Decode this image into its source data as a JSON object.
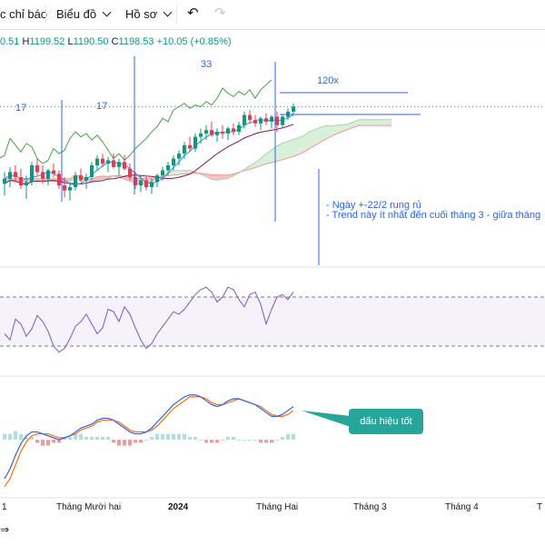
{
  "toolbar": {
    "indicators_label": "c chỉ báo",
    "chart_label": "Biểu đồ",
    "profile_label": "Hồ sơ",
    "undo_icon": "undo-icon",
    "redo_icon": "redo-icon"
  },
  "ohlc": {
    "o_fragment": "0.51",
    "h_label": "H",
    "h_value": "1199.52",
    "l_label": "L",
    "l_value": "1190.50",
    "c_label": "C",
    "c_value": "1198.53",
    "change": "+10.05 (+0.85%)"
  },
  "annotations": {
    "count_a": "17",
    "count_b": "17",
    "count_c": "33",
    "ratio": "120x",
    "note_line1": "- Ngày +-22/2 rung rủ",
    "note_line2": "- Trend này ít nhất đến cuối tháng 3 - giữa tháng",
    "callout": "dấu hiệu tốt"
  },
  "chart_data": {
    "type": "candlestick",
    "x_ticks": [
      "1",
      "Tháng Mười hai",
      "2024",
      "Tháng Hai",
      "Tháng 3",
      "Tháng 4",
      "T"
    ],
    "candles": [
      [
        5,
        12,
        -2,
        8
      ],
      [
        8,
        15,
        3,
        12
      ],
      [
        12,
        16,
        6,
        9
      ],
      [
        9,
        14,
        2,
        4
      ],
      [
        4,
        10,
        -4,
        6
      ],
      [
        6,
        18,
        4,
        16
      ],
      [
        16,
        20,
        10,
        12
      ],
      [
        12,
        16,
        5,
        8
      ],
      [
        8,
        14,
        4,
        13
      ],
      [
        13,
        17,
        9,
        11
      ],
      [
        11,
        13,
        2,
        4
      ],
      [
        4,
        9,
        -3,
        1
      ],
      [
        1,
        6,
        -5,
        3
      ],
      [
        3,
        12,
        1,
        10
      ],
      [
        10,
        14,
        6,
        7
      ],
      [
        7,
        11,
        2,
        9
      ],
      [
        9,
        18,
        7,
        16
      ],
      [
        16,
        22,
        13,
        20
      ],
      [
        20,
        23,
        15,
        17
      ],
      [
        17,
        21,
        12,
        19
      ],
      [
        19,
        23,
        14,
        15
      ],
      [
        15,
        20,
        10,
        18
      ],
      [
        18,
        22,
        13,
        14
      ],
      [
        14,
        17,
        7,
        9
      ],
      [
        9,
        12,
        2,
        4
      ],
      [
        4,
        10,
        0,
        7
      ],
      [
        7,
        9,
        1,
        3
      ],
      [
        3,
        8,
        -1,
        6
      ],
      [
        6,
        11,
        3,
        10
      ],
      [
        10,
        15,
        7,
        13
      ],
      [
        13,
        18,
        10,
        16
      ],
      [
        16,
        22,
        13,
        20
      ],
      [
        20,
        25,
        16,
        23
      ],
      [
        23,
        30,
        20,
        28
      ],
      [
        28,
        33,
        24,
        26
      ],
      [
        26,
        35,
        24,
        33
      ],
      [
        33,
        38,
        29,
        35
      ],
      [
        35,
        40,
        31,
        37
      ],
      [
        37,
        42,
        33,
        34
      ],
      [
        34,
        38,
        30,
        36
      ],
      [
        36,
        40,
        32,
        35
      ],
      [
        35,
        39,
        31,
        38
      ],
      [
        38,
        41,
        34,
        36
      ],
      [
        36,
        42,
        34,
        40
      ],
      [
        40,
        48,
        38,
        46
      ],
      [
        46,
        49,
        41,
        43
      ],
      [
        43,
        46,
        39,
        41
      ],
      [
        41,
        45,
        37,
        44
      ],
      [
        44,
        47,
        40,
        42
      ],
      [
        42,
        46,
        38,
        45
      ],
      [
        45,
        48,
        36,
        40
      ],
      [
        40,
        46,
        38,
        45
      ],
      [
        45,
        50,
        43,
        48
      ],
      [
        48,
        53,
        46,
        51
      ]
    ],
    "y_range": [
      -10,
      55
    ],
    "rsi": {
      "values": [
        40,
        35,
        52,
        48,
        38,
        44,
        55,
        50,
        42,
        30,
        25,
        28,
        36,
        46,
        50,
        56,
        48,
        40,
        45,
        60,
        58,
        50,
        62,
        56,
        45,
        35,
        28,
        32,
        40,
        46,
        52,
        58,
        56,
        60,
        66,
        72,
        76,
        78,
        74,
        66,
        70,
        78,
        76,
        68,
        62,
        72,
        74,
        64,
        48,
        60,
        70,
        72,
        68,
        74
      ],
      "levels": [
        70,
        30
      ],
      "y_range": [
        10,
        90
      ]
    },
    "macd": {
      "macd_line": [
        -20,
        -15,
        -8,
        -2,
        2,
        4,
        4,
        3,
        2,
        1,
        0,
        1,
        2,
        4,
        6,
        7,
        8,
        10,
        11,
        11,
        10,
        8,
        6,
        4,
        3,
        3,
        4,
        6,
        9,
        12,
        15,
        18,
        20,
        22,
        23,
        23,
        22,
        20,
        18,
        17,
        18,
        20,
        21,
        21,
        20,
        19,
        18,
        16,
        14,
        12,
        12,
        13,
        15,
        17
      ],
      "signal_line": [
        -24,
        -20,
        -13,
        -6,
        -1,
        2,
        3,
        3,
        3,
        2,
        1,
        1,
        2,
        3,
        5,
        6,
        7,
        9,
        10,
        10,
        10,
        9,
        7,
        5,
        4,
        4,
        4,
        5,
        7,
        10,
        13,
        16,
        18,
        20,
        22,
        22,
        22,
        21,
        19,
        18,
        18,
        19,
        20,
        21,
        20,
        19,
        18,
        17,
        15,
        13,
        12,
        12,
        13,
        15
      ],
      "histogram": [
        2,
        2,
        3,
        2,
        1,
        1,
        -1,
        -2,
        -2,
        -1,
        -1,
        1,
        1,
        2,
        2,
        1,
        1,
        1,
        1,
        1,
        -1,
        -2,
        -2,
        -2,
        -1,
        -1,
        0,
        1,
        2,
        2,
        2,
        2,
        2,
        2,
        1,
        1,
        0,
        -1,
        -1,
        -1,
        0,
        1,
        1,
        0,
        0,
        0,
        0,
        -1,
        -1,
        -1,
        0,
        1,
        2,
        2
      ],
      "y_range": [
        -26,
        28
      ]
    },
    "colors": {
      "up": "#089981",
      "down": "#f23645",
      "rsi": "#7e57c2",
      "macd": "#2962ff",
      "signal": "#ff6d00",
      "cloud_bear": "#f8b6b8",
      "cloud_bull": "#d4ecd4",
      "lagging": "#43a047",
      "base": "#880e4f",
      "conversion": "#2196f3"
    }
  }
}
